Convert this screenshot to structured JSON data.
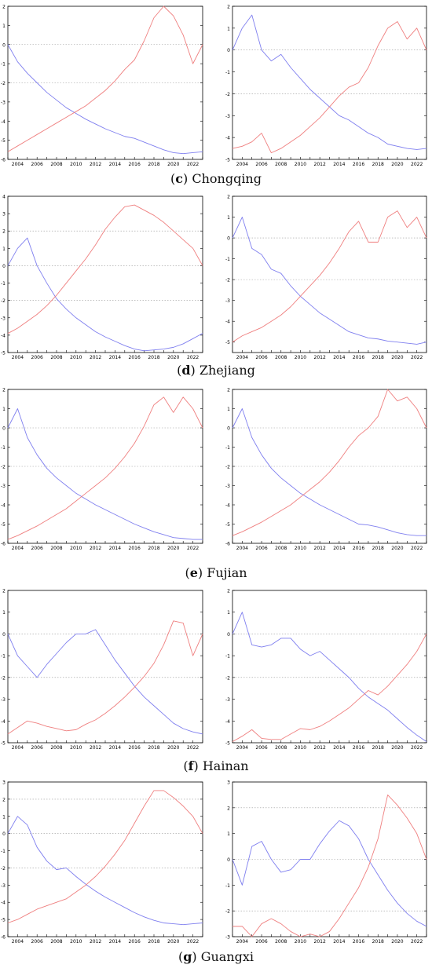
{
  "colors": {
    "series_a": "#7f7fef",
    "series_b": "#ef7f7f",
    "axis": "#000000",
    "grid": "#9a9a9a"
  },
  "years_tick_labels": [
    "2004",
    "2006",
    "2008",
    "2010",
    "2012",
    "2014",
    "2016",
    "2018",
    "2020",
    "2022"
  ],
  "rows": [
    {
      "id": "c",
      "caption_letter": "c",
      "caption_name": "Chongqing"
    },
    {
      "id": "d",
      "caption_letter": "d",
      "caption_name": "Zhejiang"
    },
    {
      "id": "e",
      "caption_letter": "e",
      "caption_name": "Fujian"
    },
    {
      "id": "f",
      "caption_letter": "f",
      "caption_name": "Hainan"
    },
    {
      "id": "g",
      "caption_letter": "g",
      "caption_name": "Guangxi"
    }
  ],
  "chart_data": [
    {
      "type": "line",
      "panel": "c-left",
      "x": [
        2003,
        2004,
        2005,
        2006,
        2007,
        2008,
        2009,
        2010,
        2011,
        2012,
        2013,
        2014,
        2015,
        2016,
        2017,
        2018,
        2019,
        2020,
        2021,
        2022,
        2023
      ],
      "xlim": [
        2003,
        2023
      ],
      "ylim": [
        -6,
        2
      ],
      "yticks": [
        2,
        1,
        0,
        -1,
        -2,
        -3,
        -4,
        -5,
        -6
      ],
      "grid_y": [
        0,
        -2
      ],
      "series": [
        {
          "color": "#7f7fef",
          "values": [
            0,
            -0.9,
            -1.5,
            -2,
            -2.5,
            -2.9,
            -3.3,
            -3.6,
            -3.9,
            -4.15,
            -4.4,
            -4.6,
            -4.8,
            -4.9,
            -5.1,
            -5.3,
            -5.5,
            -5.65,
            -5.7,
            -5.65,
            -5.6
          ]
        },
        {
          "color": "#ef7f7f",
          "values": [
            -5.6,
            -5.3,
            -5,
            -4.7,
            -4.4,
            -4.1,
            -3.8,
            -3.5,
            -3.2,
            -2.8,
            -2.4,
            -1.9,
            -1.3,
            -0.8,
            0.2,
            1.4,
            2,
            1.5,
            0.5,
            -1,
            0
          ]
        }
      ]
    },
    {
      "type": "line",
      "panel": "c-right",
      "x": [
        2003,
        2004,
        2005,
        2006,
        2007,
        2008,
        2009,
        2010,
        2011,
        2012,
        2013,
        2014,
        2015,
        2016,
        2017,
        2018,
        2019,
        2020,
        2021,
        2022,
        2023
      ],
      "xlim": [
        2003,
        2023
      ],
      "ylim": [
        -5,
        2
      ],
      "yticks": [
        2,
        1,
        0,
        -1,
        -2,
        -3,
        -4,
        -5
      ],
      "grid_y": [
        0,
        -2
      ],
      "series": [
        {
          "color": "#7f7fef",
          "values": [
            0,
            1,
            1.6,
            0,
            -0.5,
            -0.2,
            -0.8,
            -1.3,
            -1.8,
            -2.2,
            -2.6,
            -3,
            -3.2,
            -3.5,
            -3.8,
            -4,
            -4.3,
            -4.4,
            -4.5,
            -4.55,
            -4.5
          ]
        },
        {
          "color": "#ef7f7f",
          "values": [
            -4.5,
            -4.4,
            -4.2,
            -3.8,
            -4.7,
            -4.5,
            -4.2,
            -3.9,
            -3.5,
            -3.1,
            -2.6,
            -2.1,
            -1.7,
            -1.5,
            -0.8,
            0.2,
            1,
            1.3,
            0.5,
            1,
            0
          ]
        }
      ]
    },
    {
      "type": "line",
      "panel": "d-left",
      "x": [
        2003,
        2004,
        2005,
        2006,
        2007,
        2008,
        2009,
        2010,
        2011,
        2012,
        2013,
        2014,
        2015,
        2016,
        2017,
        2018,
        2019,
        2020,
        2021,
        2022,
        2023
      ],
      "xlim": [
        2003,
        2023
      ],
      "ylim": [
        -5,
        4
      ],
      "yticks": [
        4,
        3,
        2,
        1,
        0,
        -1,
        -2,
        -3,
        -4,
        -5
      ],
      "grid_y": [
        2,
        0,
        -2
      ],
      "series": [
        {
          "color": "#7f7fef",
          "values": [
            0,
            1,
            1.6,
            0,
            -1,
            -1.9,
            -2.5,
            -3,
            -3.4,
            -3.8,
            -4.1,
            -4.35,
            -4.6,
            -4.8,
            -4.9,
            -4.85,
            -4.8,
            -4.7,
            -4.5,
            -4.2,
            -3.9
          ]
        },
        {
          "color": "#ef7f7f",
          "values": [
            -3.9,
            -3.6,
            -3.2,
            -2.8,
            -2.3,
            -1.7,
            -1,
            -0.3,
            0.4,
            1.2,
            2.1,
            2.8,
            3.4,
            3.5,
            3.2,
            2.9,
            2.5,
            2,
            1.5,
            1,
            0
          ]
        }
      ]
    },
    {
      "type": "line",
      "panel": "d-right",
      "x": [
        2003,
        2004,
        2005,
        2006,
        2007,
        2008,
        2009,
        2010,
        2011,
        2012,
        2013,
        2014,
        2015,
        2016,
        2017,
        2018,
        2019,
        2020,
        2021,
        2022,
        2023
      ],
      "xlim": [
        2003,
        2023
      ],
      "ylim": [
        -5.5,
        2
      ],
      "yticks": [
        2,
        1,
        0,
        -1,
        -2,
        -3,
        -4,
        -5
      ],
      "grid_y": [
        0,
        -2
      ],
      "series": [
        {
          "color": "#7f7fef",
          "values": [
            0,
            1,
            -0.5,
            -0.8,
            -1.5,
            -1.7,
            -2.3,
            -2.8,
            -3.2,
            -3.6,
            -3.9,
            -4.2,
            -4.5,
            -4.65,
            -4.8,
            -4.85,
            -4.95,
            -5,
            -5.05,
            -5.1,
            -5
          ]
        },
        {
          "color": "#ef7f7f",
          "values": [
            -5,
            -4.7,
            -4.5,
            -4.3,
            -4,
            -3.7,
            -3.3,
            -2.8,
            -2.3,
            -1.8,
            -1.2,
            -0.5,
            0.3,
            0.8,
            -0.2,
            -0.2,
            1,
            1.3,
            0.5,
            1,
            0
          ]
        }
      ]
    },
    {
      "type": "line",
      "panel": "e-left",
      "x": [
        2003,
        2004,
        2005,
        2006,
        2007,
        2008,
        2009,
        2010,
        2011,
        2012,
        2013,
        2014,
        2015,
        2016,
        2017,
        2018,
        2019,
        2020,
        2021,
        2022,
        2023
      ],
      "xlim": [
        2003,
        2023
      ],
      "ylim": [
        -6,
        2
      ],
      "yticks": [
        2,
        1,
        0,
        -1,
        -2,
        -3,
        -4,
        -5,
        -6
      ],
      "grid_y": [
        0,
        -2
      ],
      "series": [
        {
          "color": "#7f7fef",
          "values": [
            0,
            1,
            -0.5,
            -1.4,
            -2.1,
            -2.6,
            -3,
            -3.4,
            -3.7,
            -4,
            -4.25,
            -4.5,
            -4.75,
            -5,
            -5.2,
            -5.4,
            -5.55,
            -5.7,
            -5.75,
            -5.8,
            -5.8
          ]
        },
        {
          "color": "#ef7f7f",
          "values": [
            -5.8,
            -5.6,
            -5.35,
            -5.1,
            -4.8,
            -4.5,
            -4.2,
            -3.8,
            -3.4,
            -3,
            -2.6,
            -2.1,
            -1.5,
            -0.8,
            0.1,
            1.2,
            1.6,
            0.8,
            1.6,
            1,
            0
          ]
        }
      ]
    },
    {
      "type": "line",
      "panel": "e-right",
      "x": [
        2003,
        2004,
        2005,
        2006,
        2007,
        2008,
        2009,
        2010,
        2011,
        2012,
        2013,
        2014,
        2015,
        2016,
        2017,
        2018,
        2019,
        2020,
        2021,
        2022,
        2023
      ],
      "xlim": [
        2003,
        2023
      ],
      "ylim": [
        -6,
        2
      ],
      "yticks": [
        2,
        1,
        0,
        -1,
        -2,
        -3,
        -4,
        -5,
        -6
      ],
      "grid_y": [
        0,
        -2
      ],
      "series": [
        {
          "color": "#7f7fef",
          "values": [
            0,
            1,
            -0.5,
            -1.4,
            -2.1,
            -2.6,
            -3,
            -3.4,
            -3.7,
            -4,
            -4.25,
            -4.5,
            -4.75,
            -5,
            -5.05,
            -5.15,
            -5.3,
            -5.45,
            -5.55,
            -5.6,
            -5.6
          ]
        },
        {
          "color": "#ef7f7f",
          "values": [
            -5.6,
            -5.4,
            -5.15,
            -4.9,
            -4.6,
            -4.3,
            -4,
            -3.6,
            -3.2,
            -2.8,
            -2.3,
            -1.7,
            -1,
            -0.4,
            0,
            0.6,
            2,
            1.4,
            1.6,
            1,
            0
          ]
        }
      ]
    },
    {
      "type": "line",
      "panel": "f-left",
      "x": [
        2003,
        2004,
        2005,
        2006,
        2007,
        2008,
        2009,
        2010,
        2011,
        2012,
        2013,
        2014,
        2015,
        2016,
        2017,
        2018,
        2019,
        2020,
        2021,
        2022,
        2023
      ],
      "xlim": [
        2003,
        2023
      ],
      "ylim": [
        -5,
        2
      ],
      "yticks": [
        2,
        1,
        0,
        -1,
        -2,
        -3,
        -4,
        -5
      ],
      "grid_y": [
        0,
        -2
      ],
      "series": [
        {
          "color": "#7f7fef",
          "values": [
            0,
            -1,
            -1.5,
            -2,
            -1.4,
            -0.9,
            -0.4,
            0,
            0,
            0.2,
            -0.5,
            -1.2,
            -1.8,
            -2.4,
            -2.9,
            -3.3,
            -3.7,
            -4.1,
            -4.35,
            -4.5,
            -4.6
          ]
        },
        {
          "color": "#ef7f7f",
          "values": [
            -4.6,
            -4.3,
            -4,
            -4.1,
            -4.25,
            -4.35,
            -4.45,
            -4.4,
            -4.15,
            -3.95,
            -3.65,
            -3.3,
            -2.9,
            -2.45,
            -1.95,
            -1.35,
            -0.5,
            0.6,
            0.5,
            -1,
            0
          ]
        }
      ]
    },
    {
      "type": "line",
      "panel": "f-right",
      "x": [
        2003,
        2004,
        2005,
        2006,
        2007,
        2008,
        2009,
        2010,
        2011,
        2012,
        2013,
        2014,
        2015,
        2016,
        2017,
        2018,
        2019,
        2020,
        2021,
        2022,
        2023
      ],
      "xlim": [
        2003,
        2023
      ],
      "ylim": [
        -5,
        2
      ],
      "yticks": [
        2,
        1,
        0,
        -1,
        -2,
        -3,
        -4,
        -5
      ],
      "grid_y": [
        0,
        -2
      ],
      "series": [
        {
          "color": "#7f7fef",
          "values": [
            0,
            1,
            -0.5,
            -0.6,
            -0.5,
            -0.2,
            -0.2,
            -0.7,
            -1,
            -0.8,
            -1.2,
            -1.6,
            -2,
            -2.5,
            -2.9,
            -3.2,
            -3.5,
            -3.9,
            -4.3,
            -4.65,
            -4.95
          ]
        },
        {
          "color": "#ef7f7f",
          "values": [
            -4.95,
            -4.7,
            -4.4,
            -4.8,
            -4.85,
            -4.85,
            -4.6,
            -4.35,
            -4.4,
            -4.25,
            -4,
            -3.7,
            -3.4,
            -3,
            -2.6,
            -2.8,
            -2.4,
            -1.9,
            -1.4,
            -0.8,
            0
          ]
        }
      ]
    },
    {
      "type": "line",
      "panel": "g-left",
      "x": [
        2003,
        2004,
        2005,
        2006,
        2007,
        2008,
        2009,
        2010,
        2011,
        2012,
        2013,
        2014,
        2015,
        2016,
        2017,
        2018,
        2019,
        2020,
        2021,
        2022,
        2023
      ],
      "xlim": [
        2003,
        2023
      ],
      "ylim": [
        -6,
        3
      ],
      "yticks": [
        3,
        2,
        1,
        0,
        -1,
        -2,
        -3,
        -4,
        -5,
        -6
      ],
      "grid_y": [
        2,
        0,
        -2
      ],
      "series": [
        {
          "color": "#7f7fef",
          "values": [
            0,
            1,
            0.5,
            -0.8,
            -1.6,
            -2.1,
            -2,
            -2.5,
            -2.95,
            -3.35,
            -3.7,
            -4,
            -4.3,
            -4.6,
            -4.85,
            -5.05,
            -5.2,
            -5.25,
            -5.3,
            -5.25,
            -5.2
          ]
        },
        {
          "color": "#ef7f7f",
          "values": [
            -5.2,
            -5,
            -4.7,
            -4.4,
            -4.2,
            -4,
            -3.8,
            -3.4,
            -3,
            -2.5,
            -1.9,
            -1.2,
            -0.4,
            0.6,
            1.6,
            2.5,
            2.5,
            2.1,
            1.6,
            1,
            0
          ]
        }
      ]
    },
    {
      "type": "line",
      "panel": "g-right",
      "x": [
        2003,
        2004,
        2005,
        2006,
        2007,
        2008,
        2009,
        2010,
        2011,
        2012,
        2013,
        2014,
        2015,
        2016,
        2017,
        2018,
        2019,
        2020,
        2021,
        2022,
        2023
      ],
      "xlim": [
        2003,
        2023
      ],
      "ylim": [
        -3,
        3
      ],
      "yticks": [
        3,
        2,
        1,
        0,
        -1,
        -2,
        -3
      ],
      "grid_y": [
        2,
        0,
        -2
      ],
      "series": [
        {
          "color": "#7f7fef",
          "values": [
            0,
            -1,
            0.5,
            0.7,
            0,
            -0.5,
            -0.4,
            0,
            0,
            0.6,
            1.1,
            1.5,
            1.3,
            0.8,
            0,
            -0.6,
            -1.2,
            -1.7,
            -2.1,
            -2.4,
            -2.6
          ]
        },
        {
          "color": "#ef7f7f",
          "values": [
            -2.6,
            -2.6,
            -3,
            -2.5,
            -2.3,
            -2.5,
            -2.8,
            -3,
            -2.9,
            -3,
            -2.8,
            -2.3,
            -1.7,
            -1.1,
            -0.3,
            0.8,
            2.5,
            2.1,
            1.6,
            1,
            0
          ]
        }
      ]
    }
  ]
}
